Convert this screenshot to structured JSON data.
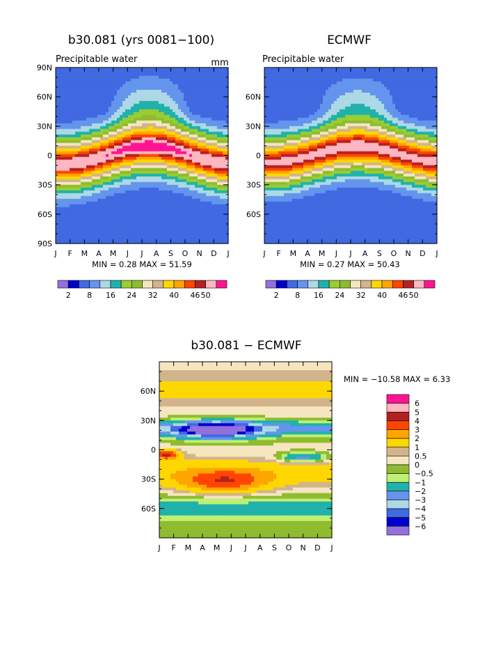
{
  "colors": {
    "top": [
      "#9370DB",
      "#0000CD",
      "#4169E1",
      "#6495ED",
      "#ADD8E6",
      "#20B2AA",
      "#9ACD32",
      "#8FBC2F",
      "#F5E6C0",
      "#D2B48C",
      "#FFD700",
      "#FFA500",
      "#FF4500",
      "#B22222",
      "#FFB6C1",
      "#FF1493"
    ],
    "diff": [
      "#FF1493",
      "#FFB6C1",
      "#B22222",
      "#FF4500",
      "#FFA500",
      "#FFD700",
      "#D2B48C",
      "#F5E6C0",
      "#8FBC2F",
      "#BFEF73",
      "#20B2AA",
      "#6495ED",
      "#ADD8E6",
      "#4169E1",
      "#0000CD",
      "#9370DB"
    ]
  },
  "chart_data": [
    {
      "type": "heatmap",
      "title": "b30.081 (yrs 0081−100)",
      "subtitle": "Precipitable water",
      "units": "mm",
      "x_ticks": [
        "J",
        "F",
        "M",
        "A",
        "M",
        "J",
        "J",
        "A",
        "S",
        "O",
        "N",
        "D",
        "J"
      ],
      "y_ticks": [
        "90N",
        "60N",
        "30N",
        "0",
        "30S",
        "60S",
        "90S"
      ],
      "stats": "MIN =    0.28 MAX =   51.59",
      "min": 0.28,
      "max": 51.59,
      "colorbar_labels": [
        "2",
        "8",
        "16",
        "24",
        "32",
        "40",
        "46",
        "50"
      ],
      "ylim": [
        -90,
        90
      ]
    },
    {
      "type": "heatmap",
      "title": "ECMWF",
      "subtitle": "Precipitable water",
      "x_ticks": [
        "J",
        "F",
        "M",
        "A",
        "M",
        "J",
        "J",
        "A",
        "S",
        "O",
        "N",
        "D",
        "J"
      ],
      "y_ticks": [
        "60N",
        "30N",
        "0",
        "30S",
        "60S"
      ],
      "stats": "MIN =    0.27 MAX =   50.43",
      "min": 0.27,
      "max": 50.43,
      "colorbar_labels": [
        "2",
        "8",
        "16",
        "24",
        "32",
        "40",
        "46",
        "50"
      ],
      "ylim": [
        -90,
        90
      ]
    },
    {
      "type": "heatmap",
      "title": "b30.081 − ECMWF",
      "x_ticks": [
        "J",
        "F",
        "M",
        "A",
        "M",
        "J",
        "J",
        "A",
        "S",
        "O",
        "N",
        "D",
        "J"
      ],
      "y_ticks": [
        "60N",
        "30N",
        "0",
        "30S",
        "60S"
      ],
      "stats": "MIN = −10.58 MAX =    6.33",
      "min": -10.58,
      "max": 6.33,
      "legend_labels": [
        "6",
        "5",
        "4",
        "3",
        "2",
        "1",
        "0.5",
        "0",
        "−0.5",
        "−1",
        "−2",
        "−3",
        "−4",
        "−5",
        "−6"
      ],
      "ylim": [
        -90,
        90
      ]
    }
  ]
}
